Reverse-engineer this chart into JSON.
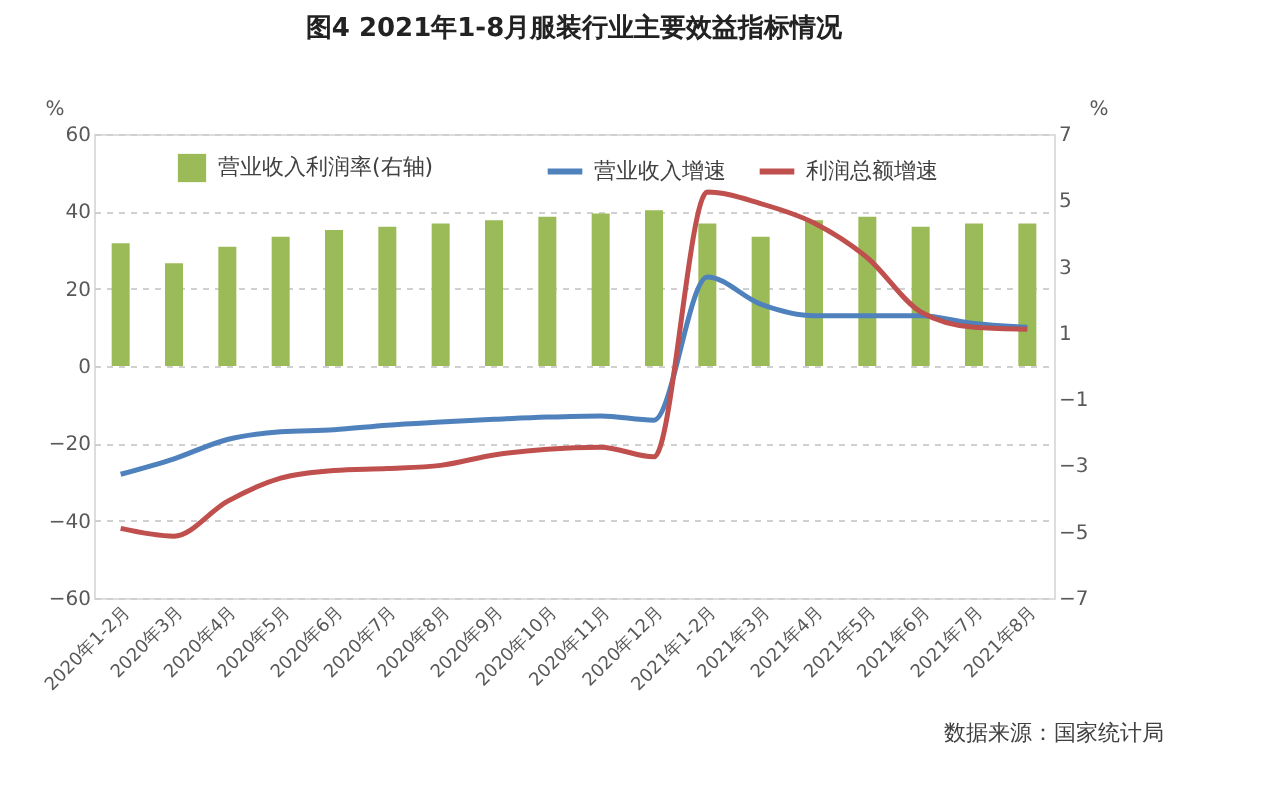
{
  "chart_data": {
    "type": "bar",
    "title": "图4  2021年1-8月服装行业主要效益指标情况",
    "categories": [
      "2020年1-2月",
      "2020年3月",
      "2020年4月",
      "2020年5月",
      "2020年6月",
      "2020年7月",
      "2020年8月",
      "2020年9月",
      "2020年10月",
      "2020年11月",
      "2020年12月",
      "2021年1-2月",
      "2021年3月",
      "2021年4月",
      "2021年5月",
      "2021年6月",
      "2021年7月",
      "2021年8月"
    ],
    "series": [
      {
        "name": "营业收入利润率(右轴)",
        "axis": "y2",
        "color": "#9bbb59",
        "values": [
          3.7,
          3.1,
          3.6,
          3.9,
          4.1,
          4.2,
          4.3,
          4.4,
          4.5,
          4.6,
          4.7,
          4.3,
          3.9,
          4.4,
          4.5,
          4.2,
          4.3,
          4.3
        ]
      },
      {
        "name": "营业收入增速",
        "type": "line",
        "color": "#4f81bd",
        "values": [
          -28,
          -24,
          -19,
          -17,
          -16.5,
          -15.3,
          -14.5,
          -13.8,
          -13.2,
          -12.9,
          -14,
          23,
          16,
          13,
          13,
          13,
          11,
          10
        ]
      },
      {
        "name": "利润总额增速",
        "type": "line",
        "color": "#c0504d",
        "values": [
          -42,
          -44,
          -35,
          -29,
          -27,
          -26.5,
          -25.7,
          -23,
          -21.5,
          -21,
          -23.5,
          45,
          42,
          37,
          28,
          14,
          10,
          9.5
        ]
      }
    ],
    "ylabel": "%",
    "y2label": "%",
    "ylim": [
      -60,
      60
    ],
    "yticks": [
      -60,
      -40,
      -20,
      0,
      20,
      40,
      60
    ],
    "y2lim": [
      -7,
      7
    ],
    "y2ticks": [
      -7,
      -5,
      -3,
      -1,
      1,
      3,
      5,
      7
    ],
    "grid": "y",
    "legend": "top",
    "annotations": [
      "数据来源：国家统计局"
    ]
  }
}
